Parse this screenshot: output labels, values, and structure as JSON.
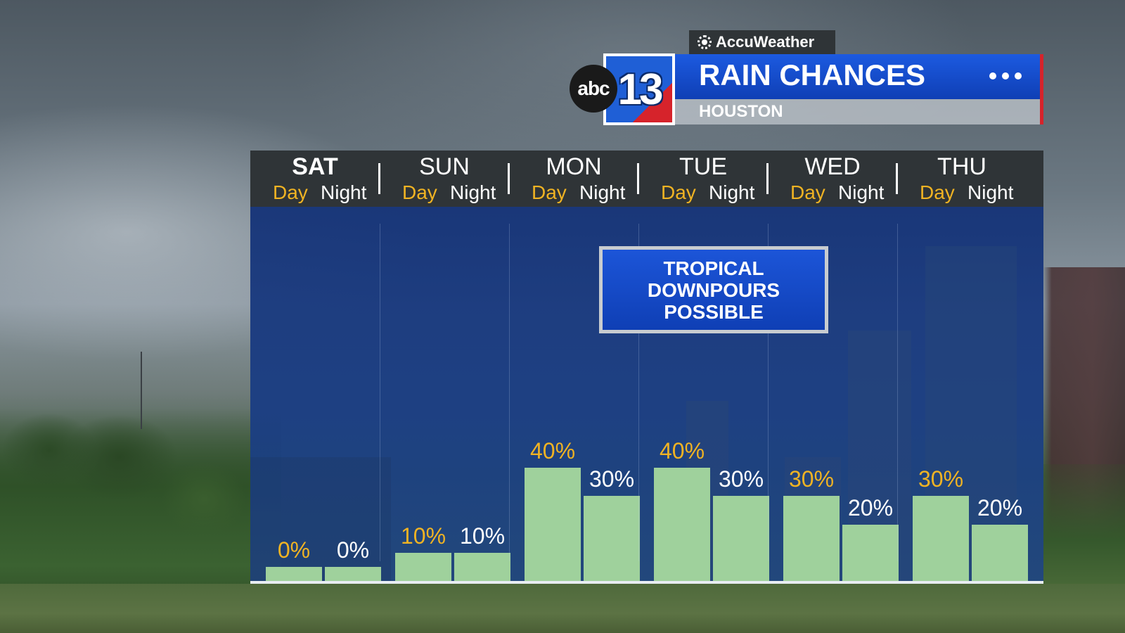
{
  "header": {
    "brand": "AccuWeather",
    "logo_abc": "abc",
    "logo_number": "13",
    "title": "RAIN CHANCES",
    "location": "HOUSTON",
    "menu_icon": "ellipsis-icon"
  },
  "callout": {
    "lines": [
      "TROPICAL",
      "DOWNPOURS",
      "POSSIBLE"
    ]
  },
  "chart_data": {
    "type": "bar",
    "categories": [
      "SAT",
      "SUN",
      "MON",
      "TUE",
      "WED",
      "THU"
    ],
    "periods": [
      "Day",
      "Night"
    ],
    "series": [
      {
        "name": "Day",
        "values": [
          0,
          10,
          40,
          40,
          30,
          30
        ]
      },
      {
        "name": "Night",
        "values": [
          0,
          10,
          30,
          30,
          20,
          20
        ]
      }
    ],
    "labels": {
      "Day": [
        "0%",
        "10%",
        "40%",
        "40%",
        "30%",
        "30%"
      ],
      "Night": [
        "0%",
        "10%",
        "30%",
        "30%",
        "20%",
        "20%"
      ]
    },
    "unit": "%",
    "title": "RAIN CHANCES",
    "subtitle": "HOUSTON",
    "ylim": [
      0,
      100
    ],
    "grid": true,
    "colors": {
      "bar": "#9fd19c",
      "day_text": "#f0b323",
      "night_text": "#ffffff"
    }
  }
}
